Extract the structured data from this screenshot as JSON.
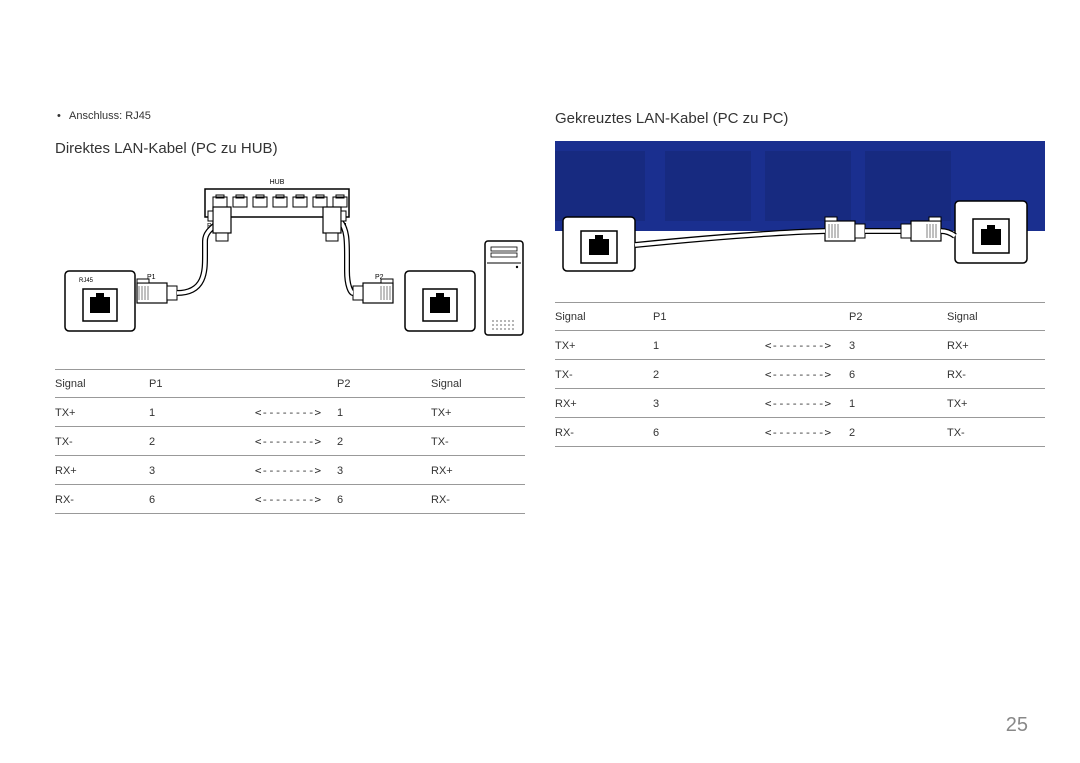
{
  "page_number": "25",
  "left": {
    "bullet": "Anschluss: RJ45",
    "title": "Direktes LAN-Kabel (PC zu HUB)",
    "diagram": {
      "hub_label": "HUB",
      "hub_p2": "P2",
      "hub_p1": "P1",
      "rj45": "RJ45",
      "conn_p1": "P1",
      "conn_p2": "P2"
    },
    "table": {
      "headers": [
        "Signal",
        "P1",
        "",
        "P2",
        "Signal"
      ],
      "rows": [
        [
          "TX+",
          "1",
          "<-------->",
          "1",
          "TX+"
        ],
        [
          "TX-",
          "2",
          "<-------->",
          "2",
          "TX-"
        ],
        [
          "RX+",
          "3",
          "<-------->",
          "3",
          "RX+"
        ],
        [
          "RX-",
          "6",
          "<-------->",
          "6",
          "RX-"
        ]
      ]
    }
  },
  "right": {
    "title": "Gekreuztes LAN-Kabel (PC zu PC)",
    "band_color": "#1a2f8f",
    "table": {
      "headers": [
        "Signal",
        "P1",
        "",
        "P2",
        "Signal"
      ],
      "rows": [
        [
          "TX+",
          "1",
          "<-------->",
          "3",
          "RX+"
        ],
        [
          "TX-",
          "2",
          "<-------->",
          "6",
          "RX-"
        ],
        [
          "RX+",
          "3",
          "<-------->",
          "1",
          "TX+"
        ],
        [
          "RX-",
          "6",
          "<-------->",
          "2",
          "TX-"
        ]
      ]
    }
  }
}
